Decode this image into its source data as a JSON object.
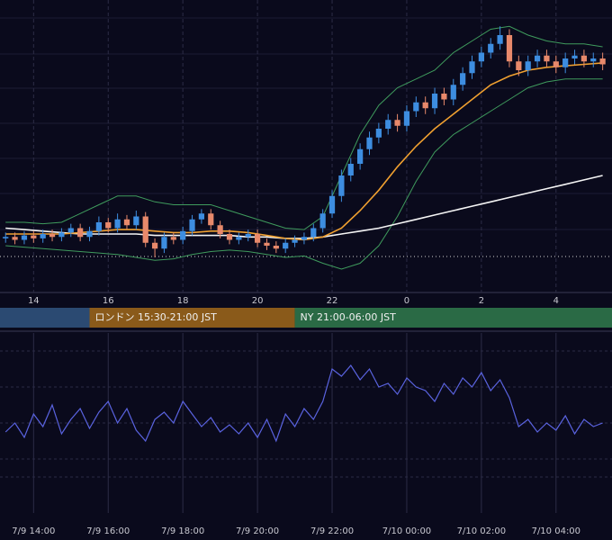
{
  "chart_data": [
    {
      "type": "candlestick",
      "x": [
        13.25,
        13.5,
        13.75,
        14,
        14.25,
        14.5,
        14.75,
        15,
        15.25,
        15.5,
        15.75,
        16,
        16.25,
        16.5,
        16.75,
        17,
        17.25,
        17.5,
        17.75,
        18,
        18.25,
        18.5,
        18.75,
        19,
        19.25,
        19.5,
        19.75,
        20,
        20.25,
        20.5,
        20.75,
        21,
        21.25,
        21.5,
        21.75,
        22,
        22.25,
        22.5,
        22.75,
        23,
        23.25,
        23.5,
        23.75,
        24,
        24.25,
        24.5,
        24.75,
        25,
        25.25,
        25.5,
        25.75,
        26,
        26.25,
        26.5,
        26.75,
        27,
        27.25,
        27.5,
        27.75,
        28,
        28.25,
        28.5,
        28.75,
        29,
        29.25
      ],
      "open": [
        18.5,
        19,
        18,
        19.5,
        18.5,
        20,
        19,
        20.5,
        22,
        19,
        21,
        24,
        22,
        25,
        23,
        26,
        17,
        15,
        19,
        18,
        21,
        25,
        27,
        23,
        20,
        18,
        19,
        20,
        17,
        16,
        15,
        17,
        18,
        19,
        22,
        27,
        33,
        40,
        44,
        49,
        53,
        56,
        59,
        57,
        62,
        65,
        63,
        68,
        66,
        71,
        75,
        79,
        82,
        85,
        88,
        79,
        76,
        79,
        81,
        79,
        77,
        80,
        81,
        79,
        80
      ],
      "high": [
        20.5,
        20.5,
        21,
        21,
        21.5,
        21.5,
        22,
        23.5,
        23.5,
        22.5,
        26,
        25.5,
        27,
        26.5,
        28,
        27.5,
        18.5,
        20.5,
        20.5,
        22.5,
        26.5,
        28.5,
        28.5,
        24.5,
        21.5,
        20.5,
        21.5,
        21.5,
        18.5,
        17.5,
        18.5,
        19.5,
        20.5,
        23.5,
        28.5,
        35,
        42,
        46,
        51,
        55,
        58,
        61,
        61,
        64,
        67,
        67,
        70,
        70,
        73,
        77,
        81,
        84,
        87,
        91,
        90,
        81,
        81,
        83,
        83,
        81,
        82,
        83,
        83,
        82,
        82
      ],
      "low": [
        17,
        16.5,
        16.5,
        17,
        17,
        17.5,
        17.5,
        19,
        17.5,
        17.5,
        19.5,
        20.5,
        20.5,
        21.5,
        21.5,
        15.5,
        12,
        13.5,
        16.5,
        16.5,
        19.5,
        23.5,
        21.5,
        18.5,
        16.5,
        16.5,
        17.5,
        15.5,
        14.5,
        13.5,
        13.5,
        15.5,
        16.5,
        17.5,
        20.5,
        25.5,
        31,
        38,
        42,
        47,
        51,
        54,
        55,
        55,
        60,
        61,
        61,
        64,
        64,
        69,
        73,
        77,
        80,
        83,
        77,
        74,
        74,
        77,
        77,
        75,
        75,
        78,
        77,
        77,
        76
      ],
      "close": [
        19,
        18,
        19.5,
        18.5,
        20,
        19,
        20.5,
        22,
        19,
        21,
        24,
        22,
        25,
        23,
        26,
        17,
        15,
        19,
        18,
        21,
        25,
        27,
        23,
        20,
        18,
        19,
        20,
        17,
        16,
        15,
        17,
        18,
        19,
        22,
        27,
        33,
        40,
        44,
        49,
        53,
        56,
        59,
        57,
        62,
        65,
        63,
        68,
        66,
        71,
        75,
        79,
        82,
        85,
        88,
        79,
        76,
        79,
        81,
        79,
        77,
        80,
        81,
        79,
        80,
        78
      ],
      "up_color": "#3d8de0",
      "down_color": "#e8896b",
      "overlay_x": [
        13.25,
        13.75,
        14.25,
        14.75,
        15.25,
        15.75,
        16.25,
        16.75,
        17.25,
        17.75,
        18.25,
        18.75,
        19.25,
        19.75,
        20.25,
        20.75,
        21.25,
        21.75,
        22.25,
        22.75,
        23.25,
        23.75,
        24.25,
        24.75,
        25.25,
        25.75,
        26.25,
        26.75,
        27.25,
        27.75,
        28.25,
        28.75,
        29.25
      ],
      "overlays": [
        {
          "color": "#3f9b5d",
          "values": [
            24,
            24,
            23.5,
            24,
            27,
            30,
            33,
            33,
            31,
            30,
            30,
            30,
            28,
            26,
            24,
            22,
            21.5,
            26,
            40,
            54,
            64,
            70,
            73,
            76,
            82,
            86,
            90,
            91,
            88,
            86,
            85,
            85,
            84
          ]
        },
        {
          "color": "#3f9b5d",
          "values": [
            16,
            15.5,
            15,
            14.5,
            14,
            13.5,
            13,
            12,
            11,
            11.5,
            13,
            14,
            14.5,
            14,
            13,
            12,
            12.5,
            10,
            8,
            10,
            16,
            26,
            38,
            48,
            54,
            58,
            62,
            66,
            70,
            72,
            73,
            73,
            73
          ]
        },
        {
          "color": "#f5f5f5",
          "values": [
            22,
            21.5,
            21,
            20.5,
            20,
            20,
            20,
            20,
            19.5,
            19.5,
            19.5,
            19.5,
            19.5,
            19,
            19,
            18.5,
            18.5,
            19,
            20,
            21,
            22,
            23.5,
            25,
            26.5,
            28,
            29.5,
            31,
            32.5,
            34,
            35.5,
            37,
            38.5,
            40
          ]
        },
        {
          "color": "#f0a030",
          "values": [
            20,
            20,
            20,
            20,
            20.5,
            21,
            21.5,
            21.5,
            21,
            20.5,
            20.5,
            21,
            21,
            20.5,
            19.5,
            18.5,
            18,
            19,
            22,
            28,
            35,
            43,
            50,
            56,
            61,
            66,
            71,
            74,
            76,
            77,
            77.5,
            78,
            78.5
          ]
        }
      ],
      "hline": 12.3,
      "xlim": [
        13.1,
        29.5
      ],
      "ylim": [
        0,
        100
      ],
      "xticks": [
        14,
        16,
        18,
        20,
        22,
        {
          "value": 24,
          "label": "0"
        },
        {
          "value": 26,
          "label": "2"
        },
        {
          "value": 28,
          "label": "4"
        }
      ],
      "sessions": [
        {
          "end": 15.5,
          "color": "#2b4a72"
        },
        {
          "label": "ロンドン 15:30-21:00 JST",
          "start": 15.5,
          "end": 21,
          "color": "#8a5a1a"
        },
        {
          "label": "NY 21:00-06:00 JST",
          "start": 21,
          "end": 30,
          "color": "#2a6a45"
        }
      ]
    },
    {
      "type": "line",
      "x": [
        13.25,
        13.5,
        13.75,
        14,
        14.25,
        14.5,
        14.75,
        15,
        15.25,
        15.5,
        15.75,
        16,
        16.25,
        16.5,
        16.75,
        17,
        17.25,
        17.5,
        17.75,
        18,
        18.25,
        18.5,
        18.75,
        19,
        19.25,
        19.5,
        19.75,
        20,
        20.25,
        20.5,
        20.75,
        21,
        21.25,
        21.5,
        21.75,
        22,
        22.25,
        22.5,
        22.75,
        23,
        23.25,
        23.5,
        23.75,
        24,
        24.25,
        24.5,
        24.75,
        25,
        25.25,
        25.5,
        25.75,
        26,
        26.25,
        26.5,
        26.75,
        27,
        27.25,
        27.5,
        27.75,
        28,
        28.25,
        28.5,
        28.75,
        29,
        29.25
      ],
      "values": [
        45,
        50,
        42,
        55,
        48,
        60,
        44,
        52,
        58,
        47,
        56,
        62,
        50,
        58,
        46,
        40,
        52,
        56,
        50,
        62,
        55,
        48,
        53,
        45,
        49,
        44,
        50,
        42,
        52,
        40,
        55,
        48,
        58,
        52,
        62,
        80,
        76,
        82,
        74,
        80,
        70,
        72,
        66,
        75,
        70,
        68,
        62,
        72,
        66,
        75,
        70,
        78,
        68,
        74,
        64,
        48,
        52,
        45,
        50,
        46,
        54,
        44,
        52,
        48,
        50
      ],
      "color": "#5a63e0",
      "xlim": [
        13.1,
        29.5
      ],
      "ylim": [
        0,
        100
      ],
      "xticks": [
        {
          "value": 14,
          "label": "7/9 14:00"
        },
        {
          "value": 16,
          "label": "7/9 16:00"
        },
        {
          "value": 18,
          "label": "7/9 18:00"
        },
        {
          "value": 20,
          "label": "7/9 20:00"
        },
        {
          "value": 22,
          "label": "7/9 22:00"
        },
        {
          "value": 24,
          "label": "7/10 00:00"
        },
        {
          "value": 26,
          "label": "7/10 02:00"
        },
        {
          "value": 28,
          "label": "7/10 04:00"
        }
      ]
    }
  ]
}
